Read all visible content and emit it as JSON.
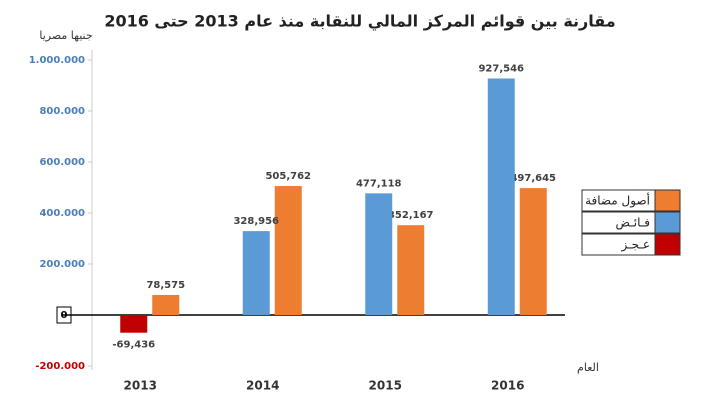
{
  "chart_data": {
    "type": "bar",
    "title": "مقارنة بين قوائم المركز المالي للنقابة منذ عام 2013 حتى 2016",
    "y_label": "جنيها مصريا",
    "x_label": "العام",
    "categories": [
      "2013",
      "2014",
      "2015",
      "2016"
    ],
    "series": [
      {
        "name": "أصول مضافة",
        "color": "#ed7d31",
        "values": [
          78575,
          505762,
          352167,
          497645
        ],
        "value_labels": [
          "78,575",
          "505,762",
          "352,167",
          "497,645"
        ]
      },
      {
        "name": "فـائـض",
        "color": "#5b9bd5",
        "values": [
          null,
          328956,
          477118,
          927546
        ],
        "value_labels": [
          null,
          "328,956",
          "477,118",
          "927,546"
        ]
      },
      {
        "name": "عـجـز",
        "color": "#c00000",
        "values": [
          -69436,
          null,
          null,
          null
        ],
        "value_labels": [
          "-69,436",
          null,
          null,
          null
        ]
      }
    ],
    "ylim": [
      -200000,
      1000000
    ],
    "yticks": [
      {
        "value": -200000,
        "label": "-200.000"
      },
      0,
      {
        "value": 200000,
        "label": "200.000"
      },
      {
        "value": 400000,
        "label": "400.000"
      },
      {
        "value": 600000,
        "label": "600.000"
      },
      {
        "value": 800000,
        "label": "800.000"
      },
      {
        "value": 1000000,
        "label": "1.000.000"
      }
    ],
    "legend": "right"
  }
}
